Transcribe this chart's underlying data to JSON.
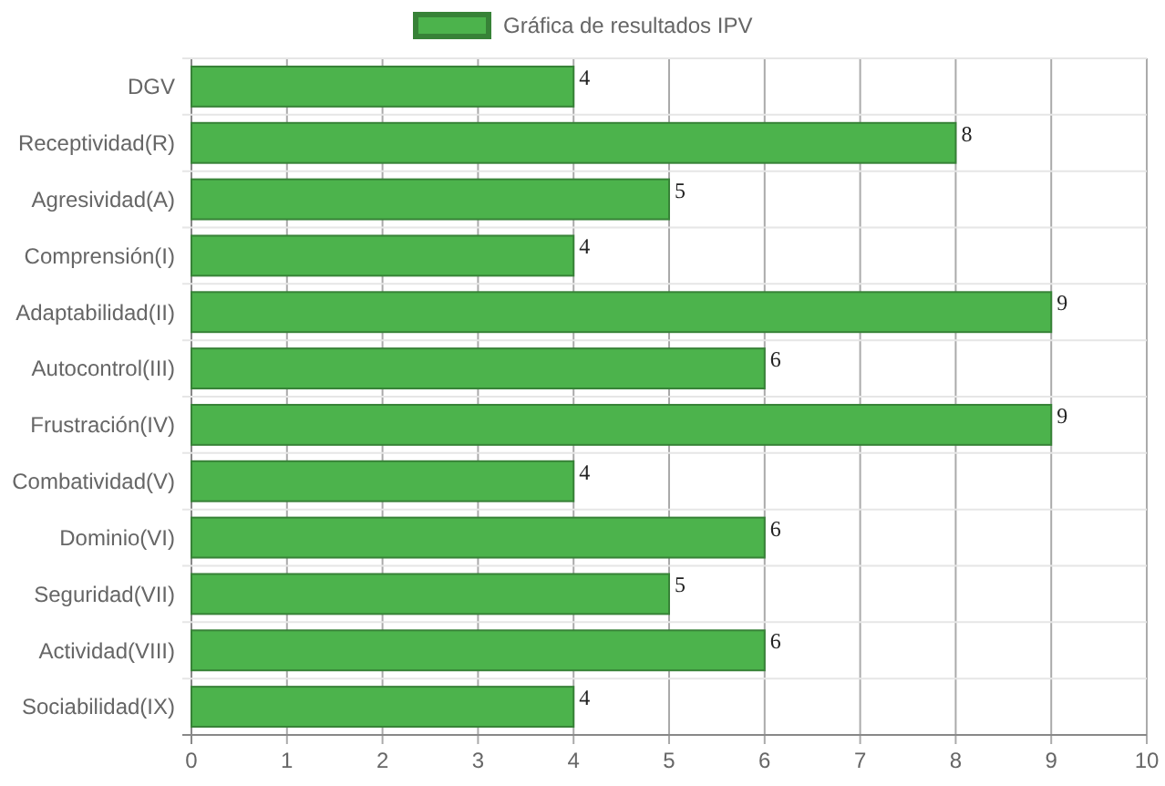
{
  "chart_data": {
    "type": "bar",
    "orientation": "horizontal",
    "categories": [
      "DGV",
      "Receptividad(R)",
      "Agresividad(A)",
      "Comprensión(I)",
      "Adaptabilidad(II)",
      "Autocontrol(III)",
      "Frustración(IV)",
      "Combatividad(V)",
      "Dominio(VI)",
      "Seguridad(VII)",
      "Actividad(VIII)",
      "Sociabilidad(IX)"
    ],
    "series": [
      {
        "name": "Gráfica de resultados IPV",
        "color": "#4cb34c",
        "values": [
          4,
          8,
          5,
          4,
          9,
          6,
          9,
          4,
          6,
          5,
          6,
          4
        ]
      }
    ],
    "xlim": [
      0,
      10
    ],
    "xticks": [
      0,
      1,
      2,
      3,
      4,
      5,
      6,
      7,
      8,
      9,
      10
    ],
    "grid": true,
    "legend": "top",
    "data_labels": true
  }
}
